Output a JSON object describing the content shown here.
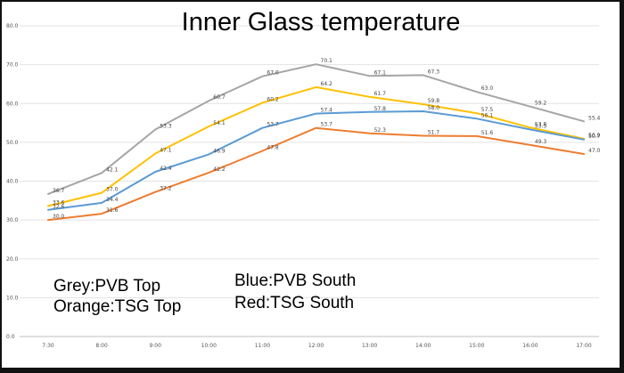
{
  "chart_data": {
    "type": "line",
    "title": "Inner Glass temperature",
    "xlabel": "",
    "ylabel": "",
    "ylim": [
      0,
      80
    ],
    "yticks": [
      "0.0",
      "10.0",
      "20.0",
      "30.0",
      "40.0",
      "50.0",
      "60.0",
      "70.0",
      "80.0"
    ],
    "grid": true,
    "categories": [
      "7:30",
      "8:00",
      "9:00",
      "10:00",
      "11:00",
      "12:00",
      "13:00",
      "14:00",
      "15:00",
      "16:00",
      "17:00"
    ],
    "series": [
      {
        "color": "#a5a5a5",
        "values": [
          36.7,
          42.1,
          53.3,
          60.7,
          67.0,
          70.1,
          67.1,
          67.3,
          63.0,
          59.2,
          55.4
        ]
      },
      {
        "color": "#ffc000",
        "values": [
          33.6,
          37.0,
          47.1,
          54.1,
          60.2,
          64.2,
          61.7,
          59.8,
          57.5,
          53.8,
          50.9
        ]
      },
      {
        "color": "#5b9bd5",
        "values": [
          32.6,
          34.4,
          42.4,
          46.9,
          53.7,
          57.4,
          57.8,
          58.0,
          56.1,
          53.3,
          50.7
        ]
      },
      {
        "color": "#ed7d31",
        "values": [
          30.0,
          31.6,
          37.2,
          42.2,
          47.8,
          53.7,
          52.3,
          51.7,
          51.6,
          49.3,
          47.0
        ]
      }
    ],
    "annotations": [
      "Grey:PVB Top",
      "Orange:TSG Top",
      "Blue:PVB South",
      "Red:TSG South"
    ]
  }
}
